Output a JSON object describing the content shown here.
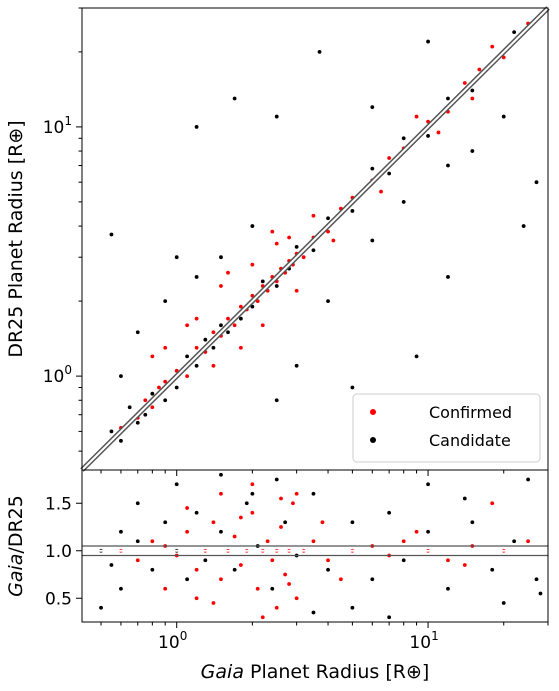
{
  "chart_data": [
    {
      "type": "scatter",
      "panel": "main",
      "xscale": "log",
      "yscale": "log",
      "xlim": [
        0.42,
        30
      ],
      "ylim": [
        0.42,
        30
      ],
      "xlabel": "",
      "ylabel": "DR25 Planet Radius [R⊕]",
      "x_ticks": [],
      "y_ticks": [
        {
          "value": 1,
          "base": "10",
          "exp": "0"
        },
        {
          "value": 10,
          "base": "10",
          "exp": "1"
        }
      ],
      "reference_line": "y = x",
      "legend": {
        "position": "lower-right",
        "entries": [
          {
            "label": "Confirmed",
            "color": "#ff0000"
          },
          {
            "label": "Candidate",
            "color": "#000000"
          }
        ]
      },
      "series": [
        {
          "name": "Confirmed",
          "color": "#ff0000",
          "points": [
            [
              0.6,
              0.62
            ],
            [
              0.7,
              0.68
            ],
            [
              0.75,
              0.8
            ],
            [
              0.8,
              0.75
            ],
            [
              0.85,
              0.9
            ],
            [
              0.9,
              0.95
            ],
            [
              1.0,
              1.05
            ],
            [
              1.1,
              1.0
            ],
            [
              1.2,
              1.3
            ],
            [
              1.3,
              1.25
            ],
            [
              1.4,
              1.5
            ],
            [
              1.5,
              1.45
            ],
            [
              1.6,
              1.7
            ],
            [
              1.7,
              1.6
            ],
            [
              1.8,
              1.9
            ],
            [
              1.9,
              1.85
            ],
            [
              2.0,
              2.1
            ],
            [
              2.1,
              2.0
            ],
            [
              2.2,
              2.3
            ],
            [
              2.3,
              2.2
            ],
            [
              2.4,
              2.5
            ],
            [
              2.5,
              2.4
            ],
            [
              2.6,
              2.7
            ],
            [
              2.7,
              2.6
            ],
            [
              2.8,
              2.9
            ],
            [
              2.9,
              2.8
            ],
            [
              3.0,
              3.1
            ],
            [
              3.2,
              3.0
            ],
            [
              3.5,
              3.6
            ],
            [
              4.0,
              3.8
            ],
            [
              4.5,
              4.7
            ],
            [
              5,
              5.2
            ],
            [
              6,
              6.1
            ],
            [
              7,
              7.5
            ],
            [
              8,
              8.2
            ],
            [
              10,
              10.5
            ],
            [
              12,
              11.5
            ],
            [
              14,
              15
            ],
            [
              16,
              17
            ],
            [
              20,
              19
            ],
            [
              25,
              26
            ],
            [
              1.5,
              2.3
            ],
            [
              2.0,
              2.8
            ],
            [
              1.2,
              1.7
            ],
            [
              2.5,
              3.4
            ],
            [
              1.8,
              1.3
            ],
            [
              2.2,
              1.6
            ],
            [
              3.0,
              2.2
            ],
            [
              0.9,
              1.3
            ],
            [
              1.4,
              1.1
            ],
            [
              1.1,
              1.6
            ],
            [
              2.8,
              3.6
            ],
            [
              3.5,
              4.4
            ],
            [
              4.2,
              3.5
            ],
            [
              6.5,
              5.5
            ],
            [
              9,
              11
            ],
            [
              11,
              9.5
            ],
            [
              15,
              13
            ],
            [
              18,
              21
            ],
            [
              1.6,
              2.6
            ],
            [
              2.4,
              3.8
            ],
            [
              0.8,
              1.2
            ]
          ]
        },
        {
          "name": "Candidate",
          "color": "#000000",
          "points": [
            [
              0.5,
              0.5
            ],
            [
              0.55,
              0.6
            ],
            [
              0.6,
              0.55
            ],
            [
              0.65,
              0.75
            ],
            [
              0.7,
              0.65
            ],
            [
              0.75,
              0.7
            ],
            [
              0.8,
              0.85
            ],
            [
              0.9,
              0.8
            ],
            [
              1.0,
              0.9
            ],
            [
              1.1,
              1.2
            ],
            [
              1.2,
              1.1
            ],
            [
              1.3,
              1.4
            ],
            [
              1.4,
              1.3
            ],
            [
              1.5,
              1.6
            ],
            [
              1.6,
              1.5
            ],
            [
              1.8,
              1.7
            ],
            [
              2.0,
              1.9
            ],
            [
              2.2,
              2.4
            ],
            [
              2.5,
              2.3
            ],
            [
              2.8,
              2.7
            ],
            [
              3.0,
              3.3
            ],
            [
              3.5,
              3.2
            ],
            [
              4,
              4.3
            ],
            [
              5,
              4.6
            ],
            [
              6,
              6.8
            ],
            [
              7,
              6.5
            ],
            [
              8,
              9
            ],
            [
              10,
              9.2
            ],
            [
              12,
              13
            ],
            [
              15,
              14
            ],
            [
              18,
              18
            ],
            [
              22,
              24
            ],
            [
              27,
              27
            ],
            [
              0.6,
              1.0
            ],
            [
              0.7,
              1.5
            ],
            [
              0.9,
              2.0
            ],
            [
              1.2,
              2.5
            ],
            [
              1.5,
              3.0
            ],
            [
              2.0,
              4.0
            ],
            [
              1.0,
              3.0
            ],
            [
              0.55,
              3.7
            ],
            [
              1.7,
              13
            ],
            [
              3.7,
              20
            ],
            [
              6,
              12
            ],
            [
              10,
              22
            ],
            [
              2.5,
              0.8
            ],
            [
              3,
              1.1
            ],
            [
              4,
              2.0
            ],
            [
              6,
              3.5
            ],
            [
              8,
              5
            ],
            [
              12,
              7
            ],
            [
              15,
              8
            ],
            [
              20,
              11
            ],
            [
              24,
              4
            ],
            [
              27,
              6
            ],
            [
              5,
              0.9
            ],
            [
              9,
              1.2
            ],
            [
              12,
              2.5
            ],
            [
              2.5,
              11
            ],
            [
              1.2,
              10
            ]
          ]
        }
      ]
    },
    {
      "type": "scatter",
      "panel": "ratio",
      "xscale": "log",
      "yscale": "linear",
      "xlim": [
        0.42,
        30
      ],
      "ylim": [
        0.25,
        1.85
      ],
      "xlabel_prefix": "Gaia",
      "xlabel_rest": " Planet Radius [R⊕]",
      "ylabel_prefix": "Gaia",
      "ylabel_rest": "/DR25",
      "x_ticks": [
        {
          "value": 1,
          "base": "10",
          "exp": "0"
        },
        {
          "value": 10,
          "base": "10",
          "exp": "1"
        }
      ],
      "y_ticks": [
        {
          "value": 0.5,
          "label": "0.5"
        },
        {
          "value": 1.0,
          "label": "1.0"
        },
        {
          "value": 1.5,
          "label": "1.5"
        }
      ],
      "reference_lines": [
        0.95,
        1.0,
        1.05
      ],
      "series": [
        {
          "name": "Confirmed",
          "color": "#ff0000",
          "points": [
            [
              0.6,
              1.0
            ],
            [
              0.7,
              0.9
            ],
            [
              0.8,
              1.1
            ],
            [
              0.9,
              1.05
            ],
            [
              1.0,
              0.95
            ],
            [
              1.1,
              1.2
            ],
            [
              1.2,
              0.8
            ],
            [
              1.3,
              1.0
            ],
            [
              1.4,
              1.3
            ],
            [
              1.5,
              0.7
            ],
            [
              1.6,
              1.0
            ],
            [
              1.7,
              1.15
            ],
            [
              1.8,
              0.85
            ],
            [
              1.9,
              1.0
            ],
            [
              2.0,
              1.4
            ],
            [
              2.1,
              0.6
            ],
            [
              2.2,
              1.0
            ],
            [
              2.3,
              1.1
            ],
            [
              2.4,
              0.9
            ],
            [
              2.5,
              1.0
            ],
            [
              2.6,
              1.25
            ],
            [
              2.7,
              0.75
            ],
            [
              2.8,
              1.0
            ],
            [
              2.9,
              1.5
            ],
            [
              3.0,
              0.5
            ],
            [
              3.2,
              1.0
            ],
            [
              3.5,
              1.1
            ],
            [
              4,
              0.9
            ],
            [
              5,
              1.0
            ],
            [
              6,
              1.05
            ],
            [
              7,
              0.95
            ],
            [
              8,
              1.1
            ],
            [
              10,
              1.0
            ],
            [
              12,
              0.9
            ],
            [
              15,
              1.05
            ],
            [
              20,
              1.0
            ],
            [
              25,
              1.1
            ],
            [
              1.5,
              1.6
            ],
            [
              2.0,
              1.7
            ],
            [
              2.5,
              0.4
            ],
            [
              3,
              1.6
            ],
            [
              1.2,
              0.5
            ],
            [
              0.9,
              0.6
            ],
            [
              2.2,
              0.3
            ],
            [
              1.8,
              1.35
            ],
            [
              2.8,
              0.65
            ],
            [
              3.8,
              1.3
            ],
            [
              4.5,
              0.7
            ],
            [
              9,
              1.2
            ],
            [
              14,
              0.85
            ],
            [
              18,
              1.5
            ],
            [
              1.4,
              0.45
            ],
            [
              2.6,
              1.55
            ],
            [
              1.1,
              1.45
            ]
          ]
        },
        {
          "name": "Candidate",
          "color": "#000000",
          "points": [
            [
              0.5,
              1.0
            ],
            [
              0.55,
              0.85
            ],
            [
              0.6,
              1.2
            ],
            [
              0.7,
              1.1
            ],
            [
              0.8,
              0.8
            ],
            [
              0.9,
              1.3
            ],
            [
              1.0,
              1.0
            ],
            [
              1.1,
              0.7
            ],
            [
              1.2,
              1.4
            ],
            [
              1.3,
              0.9
            ],
            [
              1.5,
              1.2
            ],
            [
              1.7,
              0.8
            ],
            [
              1.9,
              1.5
            ],
            [
              2.1,
              1.05
            ],
            [
              2.4,
              0.6
            ],
            [
              2.7,
              1.3
            ],
            [
              3.0,
              0.95
            ],
            [
              3.5,
              1.6
            ],
            [
              4,
              0.8
            ],
            [
              5,
              1.3
            ],
            [
              6,
              0.7
            ],
            [
              7,
              1.4
            ],
            [
              8,
              0.9
            ],
            [
              10,
              1.2
            ],
            [
              12,
              0.6
            ],
            [
              15,
              1.3
            ],
            [
              18,
              0.8
            ],
            [
              22,
              1.1
            ],
            [
              27,
              0.7
            ],
            [
              0.5,
              0.4
            ],
            [
              0.6,
              0.6
            ],
            [
              0.7,
              1.5
            ],
            [
              1.0,
              1.7
            ],
            [
              1.5,
              1.8
            ],
            [
              2.0,
              1.6
            ],
            [
              2.5,
              1.75
            ],
            [
              3.5,
              0.35
            ],
            [
              5,
              0.4
            ],
            [
              7,
              0.3
            ],
            [
              10,
              1.7
            ],
            [
              14,
              1.55
            ],
            [
              20,
              0.45
            ],
            [
              25,
              1.75
            ],
            [
              28,
              0.55
            ]
          ]
        }
      ]
    }
  ]
}
